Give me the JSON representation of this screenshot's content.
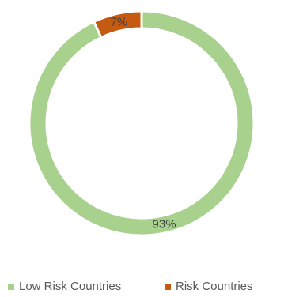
{
  "chart_data": {
    "type": "pie",
    "donut": true,
    "slices": [
      {
        "name": "Low Risk Countries",
        "value": 93,
        "label": "93%",
        "color": "#a9d18e"
      },
      {
        "name": "Risk Countries",
        "value": 7,
        "label": "7%",
        "color": "#c55a11"
      }
    ],
    "legend_position": "bottom",
    "title": ""
  }
}
